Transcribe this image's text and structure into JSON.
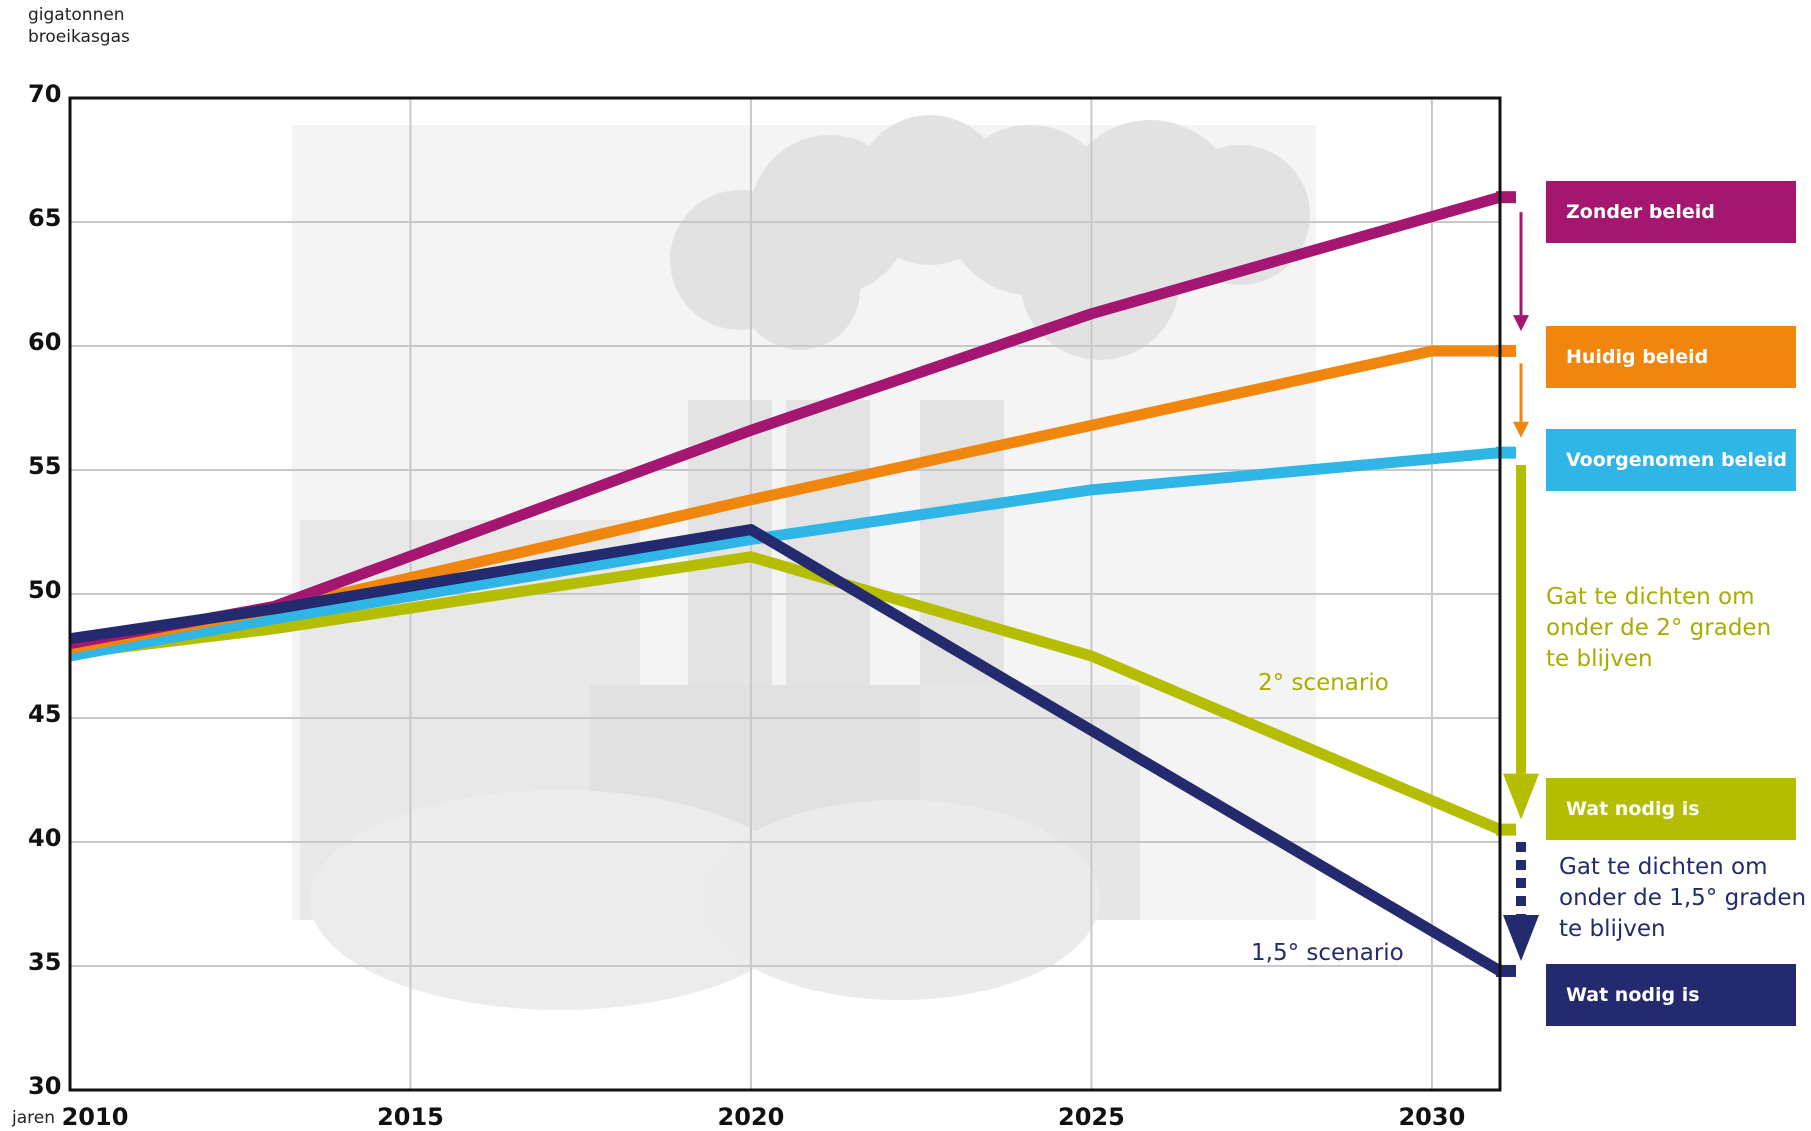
{
  "chart_data": {
    "type": "line",
    "ylabel": "gigatonnen\nbroeikasgas",
    "xlabel": "jaren",
    "ylim": [
      30,
      70
    ],
    "xlim": [
      2010,
      2031
    ],
    "yticks": [
      30,
      35,
      40,
      45,
      50,
      55,
      60,
      65,
      70
    ],
    "xticks": [
      2010,
      2015,
      2020,
      2025,
      2030
    ],
    "grid": true,
    "series": [
      {
        "name": "Zonder beleid",
        "color": "#a4166f",
        "points": [
          [
            2010,
            48.0
          ],
          [
            2013,
            49.5
          ],
          [
            2020,
            56.6
          ],
          [
            2025,
            61.3
          ],
          [
            2031,
            66.0
          ]
        ]
      },
      {
        "name": "Huidig beleid",
        "color": "#f0860e",
        "points": [
          [
            2010,
            47.8
          ],
          [
            2013,
            49.4
          ],
          [
            2020,
            53.8
          ],
          [
            2025,
            56.8
          ],
          [
            2030,
            59.8
          ],
          [
            2031,
            59.8
          ]
        ]
      },
      {
        "name": "Voorgenomen beleid",
        "color": "#2fb5e6",
        "points": [
          [
            2010,
            47.5
          ],
          [
            2013,
            49.0
          ],
          [
            2020,
            52.2
          ],
          [
            2025,
            54.2
          ],
          [
            2031,
            55.7
          ]
        ]
      },
      {
        "name": "2° scenario",
        "color": "#b5bd00",
        "points": [
          [
            2010,
            47.6
          ],
          [
            2013,
            48.6
          ],
          [
            2020,
            51.5
          ],
          [
            2025,
            47.5
          ],
          [
            2031,
            40.5
          ]
        ]
      },
      {
        "name": "1,5° scenario",
        "color": "#232a6e",
        "points": [
          [
            2010,
            48.2
          ],
          [
            2013,
            49.4
          ],
          [
            2020,
            52.6
          ],
          [
            2025,
            44.5
          ],
          [
            2031,
            34.8
          ]
        ]
      }
    ],
    "annotations": {
      "gap2": "Gat te dichten om\nonder de 2° graden\nte blijven",
      "gap15": "Gat te dichten om\nonder de 1,5° graden\nte blijven",
      "scen2": "2° scenario",
      "scen15": "1,5° scenario"
    },
    "boxes": [
      {
        "label": "Zonder beleid",
        "color": "#a4166f"
      },
      {
        "label": "Huidig beleid",
        "color": "#f0860e"
      },
      {
        "label": "Voorgenomen beleid",
        "color": "#2fb5e6"
      },
      {
        "label": "Wat nodig is",
        "color": "#b5bd00"
      },
      {
        "label": "Wat nodig is",
        "color": "#232a6e"
      }
    ]
  }
}
